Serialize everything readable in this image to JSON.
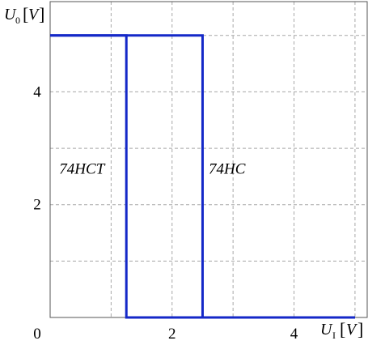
{
  "chart_data": {
    "type": "line",
    "title": "",
    "xlabel": {
      "symbol": "U",
      "subscript": "I",
      "unit": "V"
    },
    "ylabel": {
      "symbol": "U",
      "subscript": "0",
      "unit": "V"
    },
    "xlim": [
      0,
      5.2
    ],
    "ylim": [
      0,
      5.6
    ],
    "x_ticks": [
      {
        "value": 0,
        "label": "0"
      },
      {
        "value": 2,
        "label": "2"
      },
      {
        "value": 4,
        "label": "4"
      }
    ],
    "y_ticks": [
      {
        "value": 2,
        "label": "2"
      },
      {
        "value": 4,
        "label": "4"
      }
    ],
    "grid_x": [
      1,
      2,
      3,
      4,
      5
    ],
    "grid_y": [
      1,
      2,
      3,
      4,
      5
    ],
    "grid": true,
    "series_color": "#1428c8",
    "series": [
      {
        "name": "74HCT",
        "x": [
          0,
          1.25,
          1.25,
          5.0
        ],
        "y": [
          5.0,
          5.0,
          0,
          0
        ],
        "label_pos": {
          "x": 0.15,
          "y": 2.55
        }
      },
      {
        "name": "74HC",
        "x": [
          0,
          2.5,
          2.5,
          5.0
        ],
        "y": [
          5.0,
          5.0,
          0,
          0
        ],
        "label_pos": {
          "x": 2.6,
          "y": 2.55
        }
      }
    ]
  }
}
